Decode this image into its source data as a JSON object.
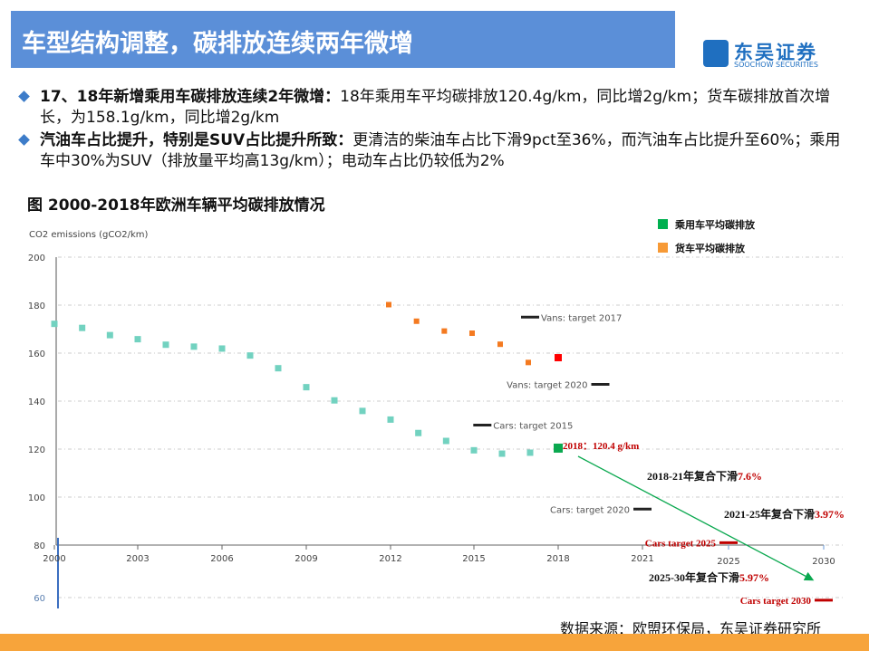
{
  "header": {
    "title": "车型结构调整，碳排放连续两年微增",
    "logo_cn": "东吴证券",
    "logo_en": "SOOCHOW SECURITIES"
  },
  "bullets": [
    {
      "bold": "17、18年新增乘用车碳排放连续2年微增：",
      "text": "18年乘用车平均碳排放120.4g/km，同比增2g/km；货车碳排放首次增长，为158.1g/km，同比增2g/km"
    },
    {
      "bold": "汽油车占比提升，特别是SUV占比提升所致：",
      "text": "更清洁的柴油车占比下滑9pct至36%，而汽油车占比提升至60%；乘用车中30%为SUV（排放量平均高13g/km）；电动车占比仍较低为2%"
    }
  ],
  "figure_title": "图  2000-2018年欧洲车辆平均碳排放情况",
  "source": "数据来源：欧盟环保局，东吴证券研究所",
  "chart_data": {
    "type": "scatter",
    "ylabel": "CO2 emissions  (gCO2/km)",
    "ylim": [
      60,
      200
    ],
    "yticks": [
      200,
      180,
      160,
      140,
      120,
      100,
      80,
      60
    ],
    "xticks": [
      2000,
      2003,
      2006,
      2009,
      2012,
      2015,
      2018,
      2021,
      2025,
      2030
    ],
    "grid": true,
    "legend_placement": "top-right",
    "colors": {
      "cars": "#72d2c0",
      "vans": "#f47a20",
      "cars_2018": "#0aa84f",
      "vans_2018": "#ff0000",
      "legend_cars": "#00b050",
      "legend_vans": "#f79a36",
      "annotation": "#c00000",
      "arrow": "#0aa84f"
    },
    "series": [
      {
        "name": "乘用车平均碳排放",
        "x": [
          2000,
          2001,
          2002,
          2003,
          2004,
          2005,
          2006,
          2007,
          2008,
          2009,
          2010,
          2011,
          2012,
          2013,
          2014,
          2015,
          2016,
          2017,
          2018
        ],
        "values": [
          172.2,
          170.5,
          167.5,
          165.8,
          163.5,
          162.7,
          161.9,
          159.0,
          153.7,
          145.8,
          140.3,
          135.9,
          132.3,
          126.7,
          123.4,
          119.5,
          118.1,
          118.5,
          120.4
        ]
      },
      {
        "name": "货车平均碳排放",
        "x": [
          2012,
          2013,
          2014,
          2015,
          2016,
          2017,
          2018
        ],
        "values": [
          180.2,
          173.3,
          169.2,
          168.3,
          163.7,
          156.1,
          158.1
        ]
      }
    ],
    "targets": [
      {
        "label": "Vans: target 2017",
        "x": 2017,
        "y": 175,
        "style": "gray"
      },
      {
        "label": "Vans: target 2020",
        "x": 2019.5,
        "y": 147,
        "style": "gray"
      },
      {
        "label": "Cars: target 2015",
        "x": 2015.3,
        "y": 130,
        "style": "gray"
      },
      {
        "label": "Cars: target 2020",
        "x": 2021,
        "y": 95,
        "style": "gray"
      },
      {
        "label": "Cars target 2025",
        "x": 2025,
        "y": 81,
        "style": "red"
      },
      {
        "label": "Cars target 2030",
        "x": 2030,
        "y": 59,
        "style": "red"
      }
    ],
    "annotations": [
      {
        "text": "2018：120.4 g/km"
      },
      {
        "text": "2018-21年复合下滑",
        "pct": "7.6%"
      },
      {
        "text": "2021-25年复合下滑",
        "pct": "3.97%"
      },
      {
        "text": "2025-30年复合下滑",
        "pct": "5.97%"
      }
    ]
  }
}
